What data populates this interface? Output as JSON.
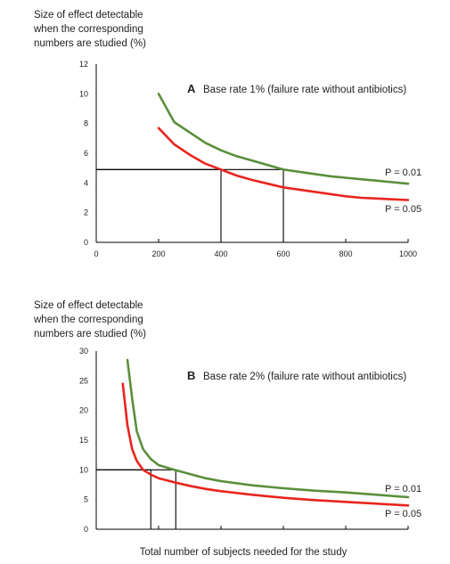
{
  "chart_data": [
    {
      "type": "line",
      "panel_letter": "A",
      "title": "Base rate 1% (failure rate without antibiotics)",
      "ylabel_lines": [
        "Size of effect detectable",
        "when the corresponding",
        "numbers are studied (%)"
      ],
      "xlabel": "",
      "xlim": [
        0,
        1000
      ],
      "ylim": [
        0,
        12
      ],
      "x_ticks": [
        "0",
        "200",
        "400",
        "600",
        "800",
        "1000"
      ],
      "y_ticks": [
        "0",
        "2",
        "4",
        "6",
        "8",
        "10",
        "12"
      ],
      "grid": false,
      "series": [
        {
          "name": "P = 0.01",
          "color": "#5a8f3c",
          "x": [
            200,
            250,
            300,
            350,
            400,
            450,
            500,
            550,
            600,
            650,
            700,
            750,
            800,
            850,
            900,
            950,
            1000
          ],
          "y": [
            10.0,
            8.1,
            7.4,
            6.7,
            6.2,
            5.8,
            5.5,
            5.2,
            4.9,
            4.75,
            4.6,
            4.45,
            4.35,
            4.25,
            4.15,
            4.05,
            3.95
          ]
        },
        {
          "name": "P = 0.05",
          "color": "#e8251e",
          "x": [
            200,
            250,
            300,
            350,
            400,
            450,
            500,
            550,
            600,
            650,
            700,
            750,
            800,
            850,
            900,
            950,
            1000
          ],
          "y": [
            7.7,
            6.6,
            5.9,
            5.3,
            4.9,
            4.5,
            4.2,
            3.95,
            3.7,
            3.55,
            3.4,
            3.25,
            3.1,
            3.0,
            2.95,
            2.9,
            2.85
          ]
        }
      ],
      "reference_lines": [
        {
          "x": 400,
          "y": 4.9
        },
        {
          "x": 600,
          "y": 4.9
        }
      ]
    },
    {
      "type": "line",
      "panel_letter": "B",
      "title": "Base rate 2% (failure rate without antibiotics)",
      "ylabel_lines": [
        "Size of effect detectable",
        "when the corresponding",
        "numbers are studied (%)"
      ],
      "xlabel": "Total number of subjects needed for the study",
      "xlim": [
        0,
        1000
      ],
      "ylim": [
        0,
        30
      ],
      "x_ticks": [],
      "y_ticks": [
        "0",
        "5",
        "10",
        "15",
        "20",
        "25",
        "30"
      ],
      "grid": false,
      "series": [
        {
          "name": "P = 0.01",
          "color": "#5a8f3c",
          "x": [
            100,
            115,
            130,
            150,
            175,
            200,
            250,
            300,
            350,
            400,
            500,
            600,
            700,
            800,
            900,
            1000
          ],
          "y": [
            28.5,
            22.0,
            16.5,
            13.5,
            11.8,
            10.8,
            10.0,
            9.3,
            8.6,
            8.1,
            7.4,
            6.9,
            6.5,
            6.2,
            5.8,
            5.4
          ]
        },
        {
          "name": "P = 0.05",
          "color": "#e8251e",
          "x": [
            85,
            100,
            115,
            130,
            150,
            175,
            200,
            250,
            300,
            350,
            400,
            500,
            600,
            700,
            800,
            900,
            1000
          ],
          "y": [
            24.5,
            17.5,
            13.5,
            11.5,
            10.0,
            9.2,
            8.6,
            7.9,
            7.3,
            6.8,
            6.4,
            5.8,
            5.3,
            4.9,
            4.6,
            4.3,
            4.0
          ]
        }
      ],
      "reference_lines": [
        {
          "x": 175,
          "y": 10
        },
        {
          "x": 255,
          "y": 10
        }
      ]
    }
  ]
}
